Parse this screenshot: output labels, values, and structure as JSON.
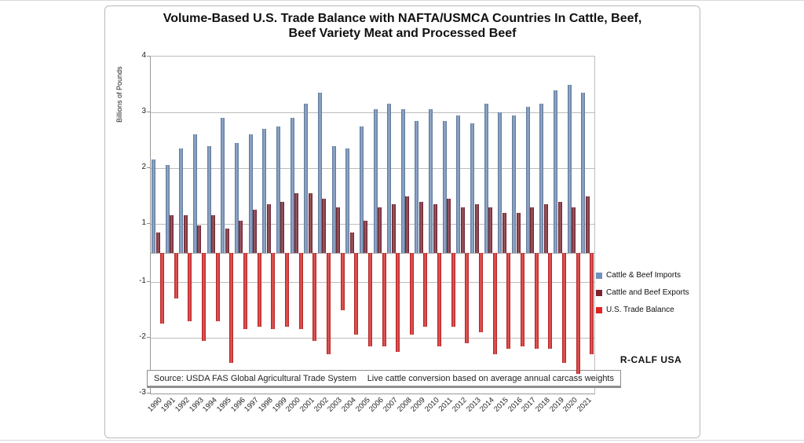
{
  "page": {
    "title_line1": "Volume-Based U.S. Trade Balance with NAFTA/USMCA Countries In Cattle, Beef,",
    "title_line2": "Beef Variety Meat and Processed Beef"
  },
  "y_axis": {
    "label": "Billions of Pounds",
    "tick_labels": [
      "4",
      "3",
      "2",
      "1",
      "-1",
      "-2",
      "-3"
    ],
    "tick_values": [
      4,
      3,
      2,
      1,
      -1,
      -2,
      -3
    ]
  },
  "legend": [
    {
      "label": "Cattle & Beef Imports",
      "color": "#7191BD",
      "swatch": "blue-square-icon"
    },
    {
      "label": "Cattle and Beef Exports",
      "color": "#7E2230",
      "swatch": "maroon-square-icon"
    },
    {
      "label": "U.S. Trade Balance",
      "color": "#E02222",
      "swatch": "red-square-icon"
    }
  ],
  "branding": "R-CALF USA",
  "footer": {
    "source": "Source:  USDA FAS Global Agricultural Trade System",
    "note": "Live cattle conversion based on average annual carcass weights"
  },
  "chart_data": {
    "type": "bar",
    "title": "Volume-Based U.S. Trade Balance with NAFTA/USMCA Countries In Cattle, Beef, Beef Variety Meat and Processed Beef",
    "xlabel": "",
    "ylabel": "Billions of Pounds",
    "ylim": [
      -3,
      4
    ],
    "grid": true,
    "legend_position": "right",
    "axis_rendering_note": "Axis labels 4,3,2,1,-1,-2,-3 are evenly spaced; the band between -1 and 1 is drawn at half scale and 0 is unlabeled",
    "categories": [
      "1990",
      "1991",
      "1992",
      "1993",
      "1994",
      "1995",
      "1996",
      "1997",
      "1998",
      "1999",
      "2000",
      "2001",
      "2002",
      "2003",
      "2004",
      "2005",
      "2006",
      "2007",
      "2008",
      "2009",
      "2010",
      "2011",
      "2012",
      "2013",
      "2014",
      "2015",
      "2016",
      "2017",
      "2018",
      "2019",
      "2020",
      "2021"
    ],
    "series": [
      {
        "name": "Cattle & Beef Imports",
        "color": "#7191BD",
        "values": [
          2.15,
          2.05,
          2.35,
          2.6,
          2.4,
          2.9,
          2.45,
          2.6,
          2.7,
          2.75,
          2.9,
          3.15,
          3.35,
          2.4,
          2.35,
          2.75,
          3.05,
          3.15,
          3.05,
          2.85,
          3.05,
          2.85,
          2.95,
          2.8,
          3.15,
          3.0,
          2.95,
          3.1,
          3.15,
          3.4,
          3.5,
          3.35
        ]
      },
      {
        "name": "Cattle and Beef Exports",
        "color": "#7E2230",
        "values": [
          0.7,
          1.15,
          1.15,
          0.95,
          1.15,
          0.85,
          1.05,
          1.25,
          1.35,
          1.4,
          1.55,
          1.55,
          1.45,
          1.3,
          0.7,
          1.05,
          1.3,
          1.35,
          1.5,
          1.4,
          1.35,
          1.45,
          1.3,
          1.35,
          1.3,
          1.2,
          1.2,
          1.3,
          1.35,
          1.4,
          1.3,
          1.5
        ]
      },
      {
        "name": "U.S. Trade Balance",
        "color": "#E02222",
        "values": [
          -1.75,
          -1.3,
          -1.7,
          -2.05,
          -1.7,
          -2.45,
          -1.85,
          -1.8,
          -1.85,
          -1.8,
          -1.85,
          -2.05,
          -2.3,
          -1.5,
          -1.95,
          -2.15,
          -2.15,
          -2.25,
          -1.95,
          -1.8,
          -2.15,
          -1.8,
          -2.1,
          -1.9,
          -2.3,
          -2.2,
          -2.15,
          -2.2,
          -2.2,
          -2.45,
          -2.65,
          -2.3
        ]
      }
    ]
  }
}
